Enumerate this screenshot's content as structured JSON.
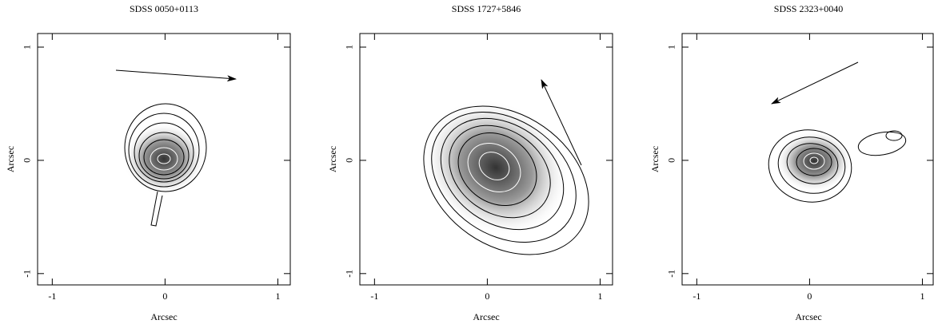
{
  "chart_data": [
    {
      "type": "contour",
      "title": "SDSS 0050+0113",
      "x_label": "Arcsec",
      "y_label": "Arcsec",
      "xlim": [
        -1.13,
        1.11
      ],
      "ylim": [
        -1.1,
        1.12
      ],
      "xticks": [
        -1,
        0,
        1
      ],
      "yticks": [
        -1,
        0,
        1
      ]
    },
    {
      "type": "contour",
      "title": "SDSS 1727+5846",
      "x_label": "Arcsec",
      "y_label": "Arcsec",
      "xlim": [
        -1.13,
        1.11
      ],
      "ylim": [
        -1.1,
        1.12
      ],
      "xticks": [
        -1,
        0,
        1
      ],
      "yticks": [
        -1,
        0,
        1
      ]
    },
    {
      "type": "contour",
      "title": "SDSS 2323+0040",
      "x_label": "Arcsec",
      "y_label": "Arcsec",
      "xlim": [
        -1.13,
        1.11
      ],
      "ylim": [
        -1.1,
        1.12
      ],
      "xticks": [
        -1,
        0,
        1
      ],
      "yticks": [
        -1,
        0,
        1
      ]
    }
  ]
}
